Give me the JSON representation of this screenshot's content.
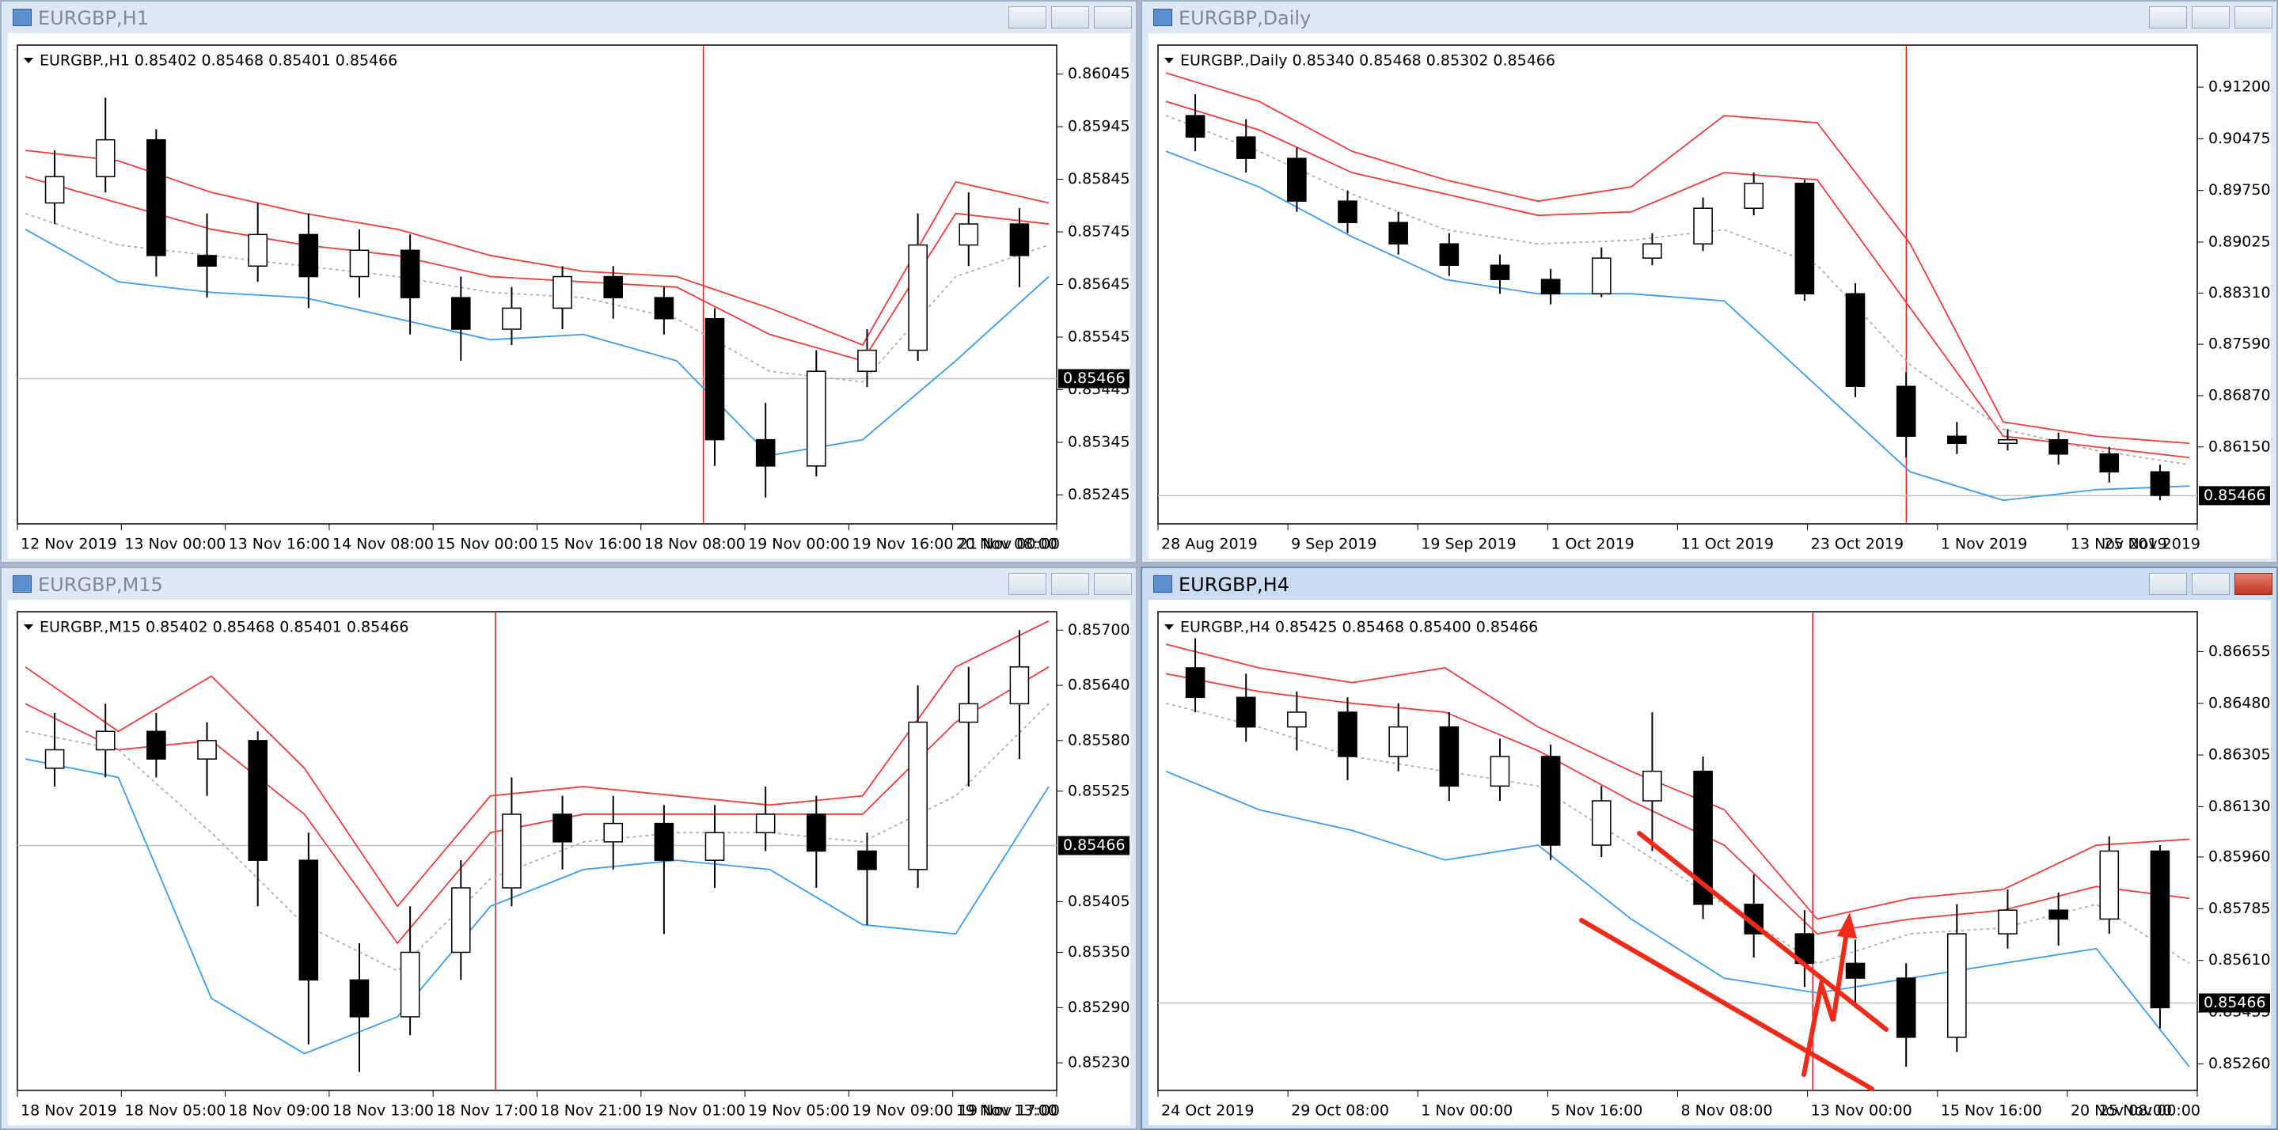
{
  "windows": [
    {
      "title": "EURGBP,H1",
      "active": false,
      "info": "EURGBP.,H1  0.85402 0.85468 0.85401 0.85466",
      "bid": 0.85466,
      "ylim": [
        0.8519,
        0.861
      ],
      "yticks": [
        0.86045,
        0.85945,
        0.85845,
        0.85745,
        0.85645,
        0.85545,
        0.85445,
        0.85345,
        0.85245
      ],
      "xlabels": [
        "12 Nov 2019",
        "13 Nov 00:00",
        "13 Nov 16:00",
        "14 Nov 08:00",
        "15 Nov 00:00",
        "15 Nov 16:00",
        "18 Nov 08:00",
        "19 Nov 00:00",
        "19 Nov 16:00",
        "20 Nov 08:00",
        "21 Nov 00:00"
      ],
      "candles": {
        "open": [
          0.858,
          0.8585,
          0.8592,
          0.857,
          0.8568,
          0.8574,
          0.8566,
          0.8571,
          0.8562,
          0.8556,
          0.856,
          0.8566,
          0.8562,
          0.8558,
          0.8535,
          0.853,
          0.8548,
          0.8552,
          0.8572,
          0.8576
        ],
        "high": [
          0.859,
          0.86,
          0.8594,
          0.8578,
          0.858,
          0.8578,
          0.8575,
          0.8574,
          0.8566,
          0.8564,
          0.8568,
          0.8568,
          0.8564,
          0.856,
          0.8542,
          0.8552,
          0.8556,
          0.8578,
          0.8582,
          0.8579
        ],
        "low": [
          0.8576,
          0.8582,
          0.8566,
          0.8562,
          0.8565,
          0.856,
          0.8562,
          0.8555,
          0.855,
          0.8553,
          0.8556,
          0.8558,
          0.8555,
          0.853,
          0.8524,
          0.8528,
          0.8545,
          0.855,
          0.8568,
          0.8564
        ],
        "close": [
          0.8585,
          0.8592,
          0.857,
          0.8568,
          0.8574,
          0.8566,
          0.8571,
          0.8562,
          0.8556,
          0.856,
          0.8566,
          0.8562,
          0.8558,
          0.8535,
          0.853,
          0.8548,
          0.8552,
          0.8572,
          0.8576,
          0.857
        ]
      },
      "bands": {
        "upper": [
          0.859,
          0.8588,
          0.8582,
          0.8578,
          0.8575,
          0.857,
          0.8567,
          0.8566,
          0.856,
          0.8553,
          0.8584,
          0.858
        ],
        "upper2": [
          0.8585,
          0.858,
          0.8575,
          0.8572,
          0.857,
          0.8566,
          0.8565,
          0.8564,
          0.8555,
          0.855,
          0.8578,
          0.8576
        ],
        "middle": [
          0.8578,
          0.8572,
          0.857,
          0.8568,
          0.8566,
          0.8563,
          0.8562,
          0.8558,
          0.8548,
          0.8546,
          0.8566,
          0.8572
        ],
        "lower": [
          0.8575,
          0.8565,
          0.8563,
          0.8562,
          0.8558,
          0.8554,
          0.8555,
          0.855,
          0.8532,
          0.8535,
          0.855,
          0.8566
        ]
      }
    },
    {
      "title": "EURGBP,Daily",
      "active": false,
      "info": "EURGBP.,Daily  0.85340 0.85468 0.85302 0.85466",
      "bid": 0.85466,
      "ylim": [
        0.8507,
        0.9179
      ],
      "yticks": [
        {
          "value": 0.912,
          "label": "0.91200"
        },
        0.90475,
        {
          "value": 0.8975,
          "label": "0.89750"
        },
        0.89025,
        {
          "value": 0.8831,
          "label": "0.88310"
        },
        {
          "value": 0.8759,
          "label": "0.87590"
        },
        {
          "value": 0.8687,
          "label": "0.86870"
        },
        {
          "value": 0.8615,
          "label": "0.86150"
        }
      ],
      "xlabels": [
        "28 Aug 2019",
        "9 Sep 2019",
        "19 Sep 2019",
        "1 Oct 2019",
        "11 Oct 2019",
        "23 Oct 2019",
        "1 Nov 2019",
        "13 Nov 2019",
        "25 Nov 2019"
      ],
      "candles": {
        "open": [
          0.908,
          0.905,
          0.902,
          0.896,
          0.893,
          0.89,
          0.887,
          0.885,
          0.883,
          0.888,
          0.89,
          0.895,
          0.8985,
          0.883,
          0.87,
          0.863,
          0.862,
          0.8625,
          0.8605,
          0.858
        ],
        "high": [
          0.911,
          0.9075,
          0.9035,
          0.8975,
          0.8945,
          0.8915,
          0.8885,
          0.8865,
          0.8895,
          0.8915,
          0.8965,
          0.9,
          0.899,
          0.8845,
          0.872,
          0.865,
          0.864,
          0.8635,
          0.8615,
          0.859
        ],
        "low": [
          0.903,
          0.9,
          0.8945,
          0.8915,
          0.8885,
          0.8855,
          0.883,
          0.8815,
          0.8825,
          0.887,
          0.889,
          0.894,
          0.882,
          0.8685,
          0.86,
          0.8605,
          0.861,
          0.859,
          0.8565,
          0.854
        ],
        "close": [
          0.905,
          0.902,
          0.896,
          0.893,
          0.89,
          0.887,
          0.885,
          0.883,
          0.888,
          0.89,
          0.895,
          0.8985,
          0.883,
          0.87,
          0.863,
          0.862,
          0.8625,
          0.8605,
          0.858,
          0.8547
        ]
      },
      "bands": {
        "upper": [
          0.914,
          0.91,
          0.903,
          0.899,
          0.896,
          0.898,
          0.908,
          0.907,
          0.89,
          0.865,
          0.863,
          0.862
        ],
        "upper2": [
          0.91,
          0.906,
          0.9,
          0.897,
          0.894,
          0.8945,
          0.9,
          0.899,
          0.881,
          0.863,
          0.8615,
          0.86
        ],
        "middle": [
          0.908,
          0.903,
          0.897,
          0.892,
          0.89,
          0.8905,
          0.892,
          0.887,
          0.873,
          0.864,
          0.861,
          0.859
        ],
        "lower": [
          0.903,
          0.898,
          0.891,
          0.885,
          0.883,
          0.883,
          0.882,
          0.87,
          0.858,
          0.854,
          0.8555,
          0.856
        ]
      }
    },
    {
      "title": "EURGBP,M15",
      "active": false,
      "info": "EURGBP.,M15  0.85402 0.85468 0.85401 0.85466",
      "bid": 0.85466,
      "ylim": [
        0.852,
        0.8572
      ],
      "yticks": [
        {
          "value": 0.857,
          "label": "0.85700"
        },
        {
          "value": 0.8564,
          "label": "0.85640"
        },
        {
          "value": 0.8558,
          "label": "0.85580"
        },
        0.85525,
        0.85405,
        {
          "value": 0.8535,
          "label": "0.85350"
        },
        {
          "value": 0.8529,
          "label": "0.85290"
        },
        {
          "value": 0.8523,
          "label": "0.85230"
        }
      ],
      "xlabels": [
        "18 Nov 2019",
        "18 Nov 05:00",
        "18 Nov 09:00",
        "18 Nov 13:00",
        "18 Nov 17:00",
        "18 Nov 21:00",
        "19 Nov 01:00",
        "19 Nov 05:00",
        "19 Nov 09:00",
        "19 Nov 13:00",
        "19 Nov 17:00"
      ],
      "candles": {
        "open": [
          0.8555,
          0.8557,
          0.8559,
          0.8556,
          0.8558,
          0.8545,
          0.8532,
          0.8528,
          0.8535,
          0.8542,
          0.855,
          0.8547,
          0.8549,
          0.8545,
          0.8548,
          0.855,
          0.8546,
          0.8544,
          0.856,
          0.8562
        ],
        "high": [
          0.8561,
          0.8562,
          0.8561,
          0.856,
          0.8559,
          0.8548,
          0.8536,
          0.854,
          0.8545,
          0.8554,
          0.8552,
          0.8552,
          0.8551,
          0.8551,
          0.8553,
          0.8552,
          0.8548,
          0.8564,
          0.8566,
          0.857
        ],
        "low": [
          0.8553,
          0.8554,
          0.8554,
          0.8552,
          0.854,
          0.8525,
          0.8522,
          0.8526,
          0.8532,
          0.854,
          0.8544,
          0.8544,
          0.8537,
          0.8542,
          0.8546,
          0.8542,
          0.8538,
          0.8542,
          0.8553,
          0.8556
        ],
        "close": [
          0.8557,
          0.8559,
          0.8556,
          0.8558,
          0.8545,
          0.8532,
          0.8528,
          0.8535,
          0.8542,
          0.855,
          0.8547,
          0.8549,
          0.8545,
          0.8548,
          0.855,
          0.8546,
          0.8544,
          0.856,
          0.8562,
          0.8566
        ]
      },
      "bands": {
        "upper": [
          0.8566,
          0.8559,
          0.8565,
          0.8555,
          0.854,
          0.8552,
          0.8553,
          0.8552,
          0.8551,
          0.8552,
          0.8566,
          0.8571
        ],
        "upper2": [
          0.8562,
          0.8557,
          0.8558,
          0.855,
          0.8536,
          0.8548,
          0.855,
          0.855,
          0.855,
          0.855,
          0.856,
          0.8566
        ],
        "middle": [
          0.8559,
          0.8557,
          0.8548,
          0.8538,
          0.8533,
          0.8543,
          0.8547,
          0.8548,
          0.8548,
          0.8547,
          0.8552,
          0.8562
        ],
        "lower": [
          0.8556,
          0.8554,
          0.853,
          0.8524,
          0.8528,
          0.854,
          0.8544,
          0.8545,
          0.8544,
          0.8538,
          0.8537,
          0.8553
        ]
      }
    },
    {
      "title": "EURGBP,H4",
      "active": true,
      "info": "EURGBP.,H4  0.85425 0.85468 0.85400 0.85466",
      "bid": 0.85466,
      "ylim": [
        0.8517,
        0.8679
      ],
      "yticks": [
        0.86655,
        {
          "value": 0.8648,
          "label": "0.86480"
        },
        0.86305,
        {
          "value": 0.8613,
          "label": "0.86130"
        },
        {
          "value": 0.8596,
          "label": "0.85960"
        },
        0.85785,
        {
          "value": 0.8561,
          "label": "0.85610"
        },
        0.85435,
        {
          "value": 0.8526,
          "label": "0.85260"
        }
      ],
      "xlabels": [
        "24 Oct 2019",
        "29 Oct 08:00",
        "1 Nov 00:00",
        "5 Nov 16:00",
        "8 Nov 08:00",
        "13 Nov 00:00",
        "15 Nov 16:00",
        "20 Nov 08:00",
        "25 Nov 00:00"
      ],
      "candles": {
        "open": [
          0.866,
          0.865,
          0.864,
          0.8645,
          0.863,
          0.864,
          0.862,
          0.863,
          0.86,
          0.8615,
          0.8625,
          0.858,
          0.857,
          0.856,
          0.8555,
          0.8535,
          0.857,
          0.8578,
          0.8575,
          0.8598
        ],
        "high": [
          0.867,
          0.8658,
          0.8652,
          0.865,
          0.8648,
          0.8645,
          0.8636,
          0.8634,
          0.862,
          0.8645,
          0.863,
          0.859,
          0.8578,
          0.8568,
          0.856,
          0.858,
          0.8585,
          0.8584,
          0.8603,
          0.86
        ],
        "low": [
          0.8645,
          0.8635,
          0.8632,
          0.8622,
          0.8625,
          0.8615,
          0.8615,
          0.8595,
          0.8596,
          0.8598,
          0.8575,
          0.8562,
          0.8552,
          0.8545,
          0.8525,
          0.853,
          0.8565,
          0.8566,
          0.857,
          0.8538
        ],
        "close": [
          0.865,
          0.864,
          0.8645,
          0.863,
          0.864,
          0.862,
          0.863,
          0.86,
          0.8615,
          0.8625,
          0.858,
          0.857,
          0.856,
          0.8555,
          0.8535,
          0.857,
          0.8578,
          0.8575,
          0.8598,
          0.8545
        ]
      },
      "bands": {
        "upper": [
          0.8668,
          0.866,
          0.8655,
          0.866,
          0.864,
          0.8625,
          0.8612,
          0.8575,
          0.8582,
          0.8585,
          0.86,
          0.8602
        ],
        "upper2": [
          0.8658,
          0.8652,
          0.8648,
          0.8645,
          0.8632,
          0.8615,
          0.86,
          0.857,
          0.8575,
          0.8578,
          0.8586,
          0.8582
        ],
        "middle": [
          0.8648,
          0.864,
          0.863,
          0.8625,
          0.862,
          0.86,
          0.858,
          0.856,
          0.857,
          0.8572,
          0.858,
          0.856
        ],
        "lower": [
          0.8625,
          0.8612,
          0.8605,
          0.8595,
          0.86,
          0.8575,
          0.8555,
          0.855,
          0.8555,
          0.856,
          0.8565,
          0.8525
        ]
      }
    }
  ]
}
